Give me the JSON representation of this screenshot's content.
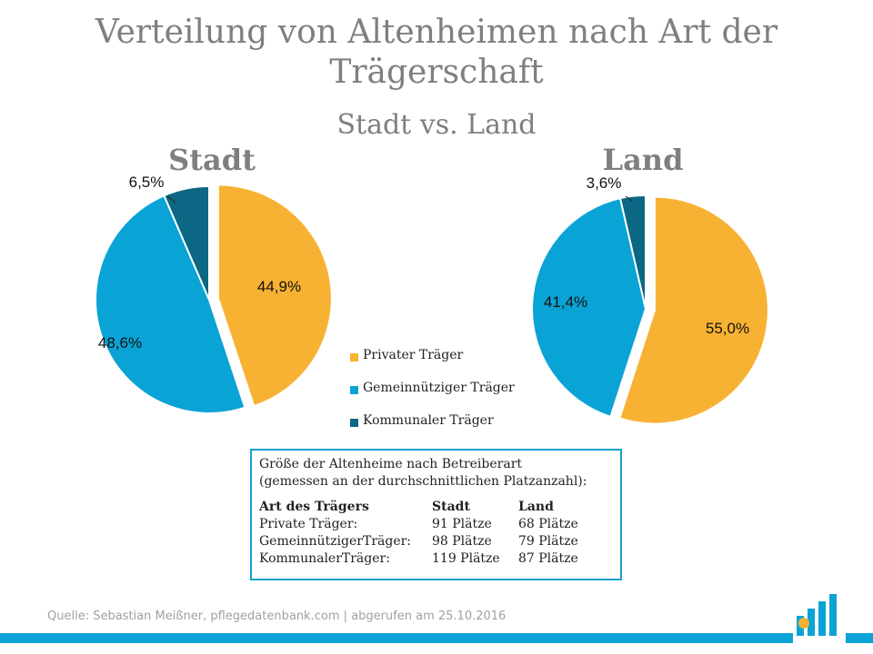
{
  "title": "Verteilung von Altenheimen nach Art der Trägerschaft",
  "subtitle": "Stadt vs. Land",
  "chart_data": [
    {
      "type": "pie",
      "title": "Stadt",
      "categories": [
        "Privater Träger",
        "Gemeinnütziger Träger",
        "Kommunaler Träger"
      ],
      "values": [
        44.9,
        48.6,
        6.5
      ],
      "labels": [
        "44,9%",
        "48,6%",
        "6,5%"
      ],
      "colors": [
        "#f7b233",
        "#0aa3d6",
        "#0b6784"
      ]
    },
    {
      "type": "pie",
      "title": "Land",
      "categories": [
        "Privater Träger",
        "Gemeinnütziger Träger",
        "Kommunaler Träger"
      ],
      "values": [
        55.0,
        41.4,
        3.6
      ],
      "labels": [
        "55,0%",
        "41,4%",
        "3,6%"
      ],
      "colors": [
        "#f7b233",
        "#0aa3d6",
        "#0b6784"
      ]
    }
  ],
  "legend": {
    "placement": "center",
    "items": [
      {
        "label": "Privater Träger",
        "color": "#f7b233"
      },
      {
        "label": "Gemeinnütziger Träger",
        "color": "#0aa3d6"
      },
      {
        "label": "Kommunaler Träger",
        "color": "#0b6784"
      }
    ]
  },
  "info_box": {
    "intro_line1": "Größe der Altenheime nach Betreiberart",
    "intro_line2": "(gemessen an der durchschnittlichen Platzanzahl):",
    "headers": [
      "Art des Trägers",
      "Stadt",
      "Land"
    ],
    "rows": [
      [
        "Private Träger:",
        "91 Plätze",
        "68 Plätze"
      ],
      [
        "GemeinnützigerTräger:",
        "98 Plätze",
        "79 Plätze"
      ],
      [
        "KommunalerTräger:",
        "119 Plätze",
        "87 Plätze"
      ]
    ]
  },
  "source": "Quelle: Sebastian Meißner, pflegedatenbank.com | abgerufen am 25.10.2016",
  "colors": {
    "text_gray": "#7f7f7f",
    "accent_blue": "#0aa3d6",
    "box_border": "#1ba1cc"
  }
}
